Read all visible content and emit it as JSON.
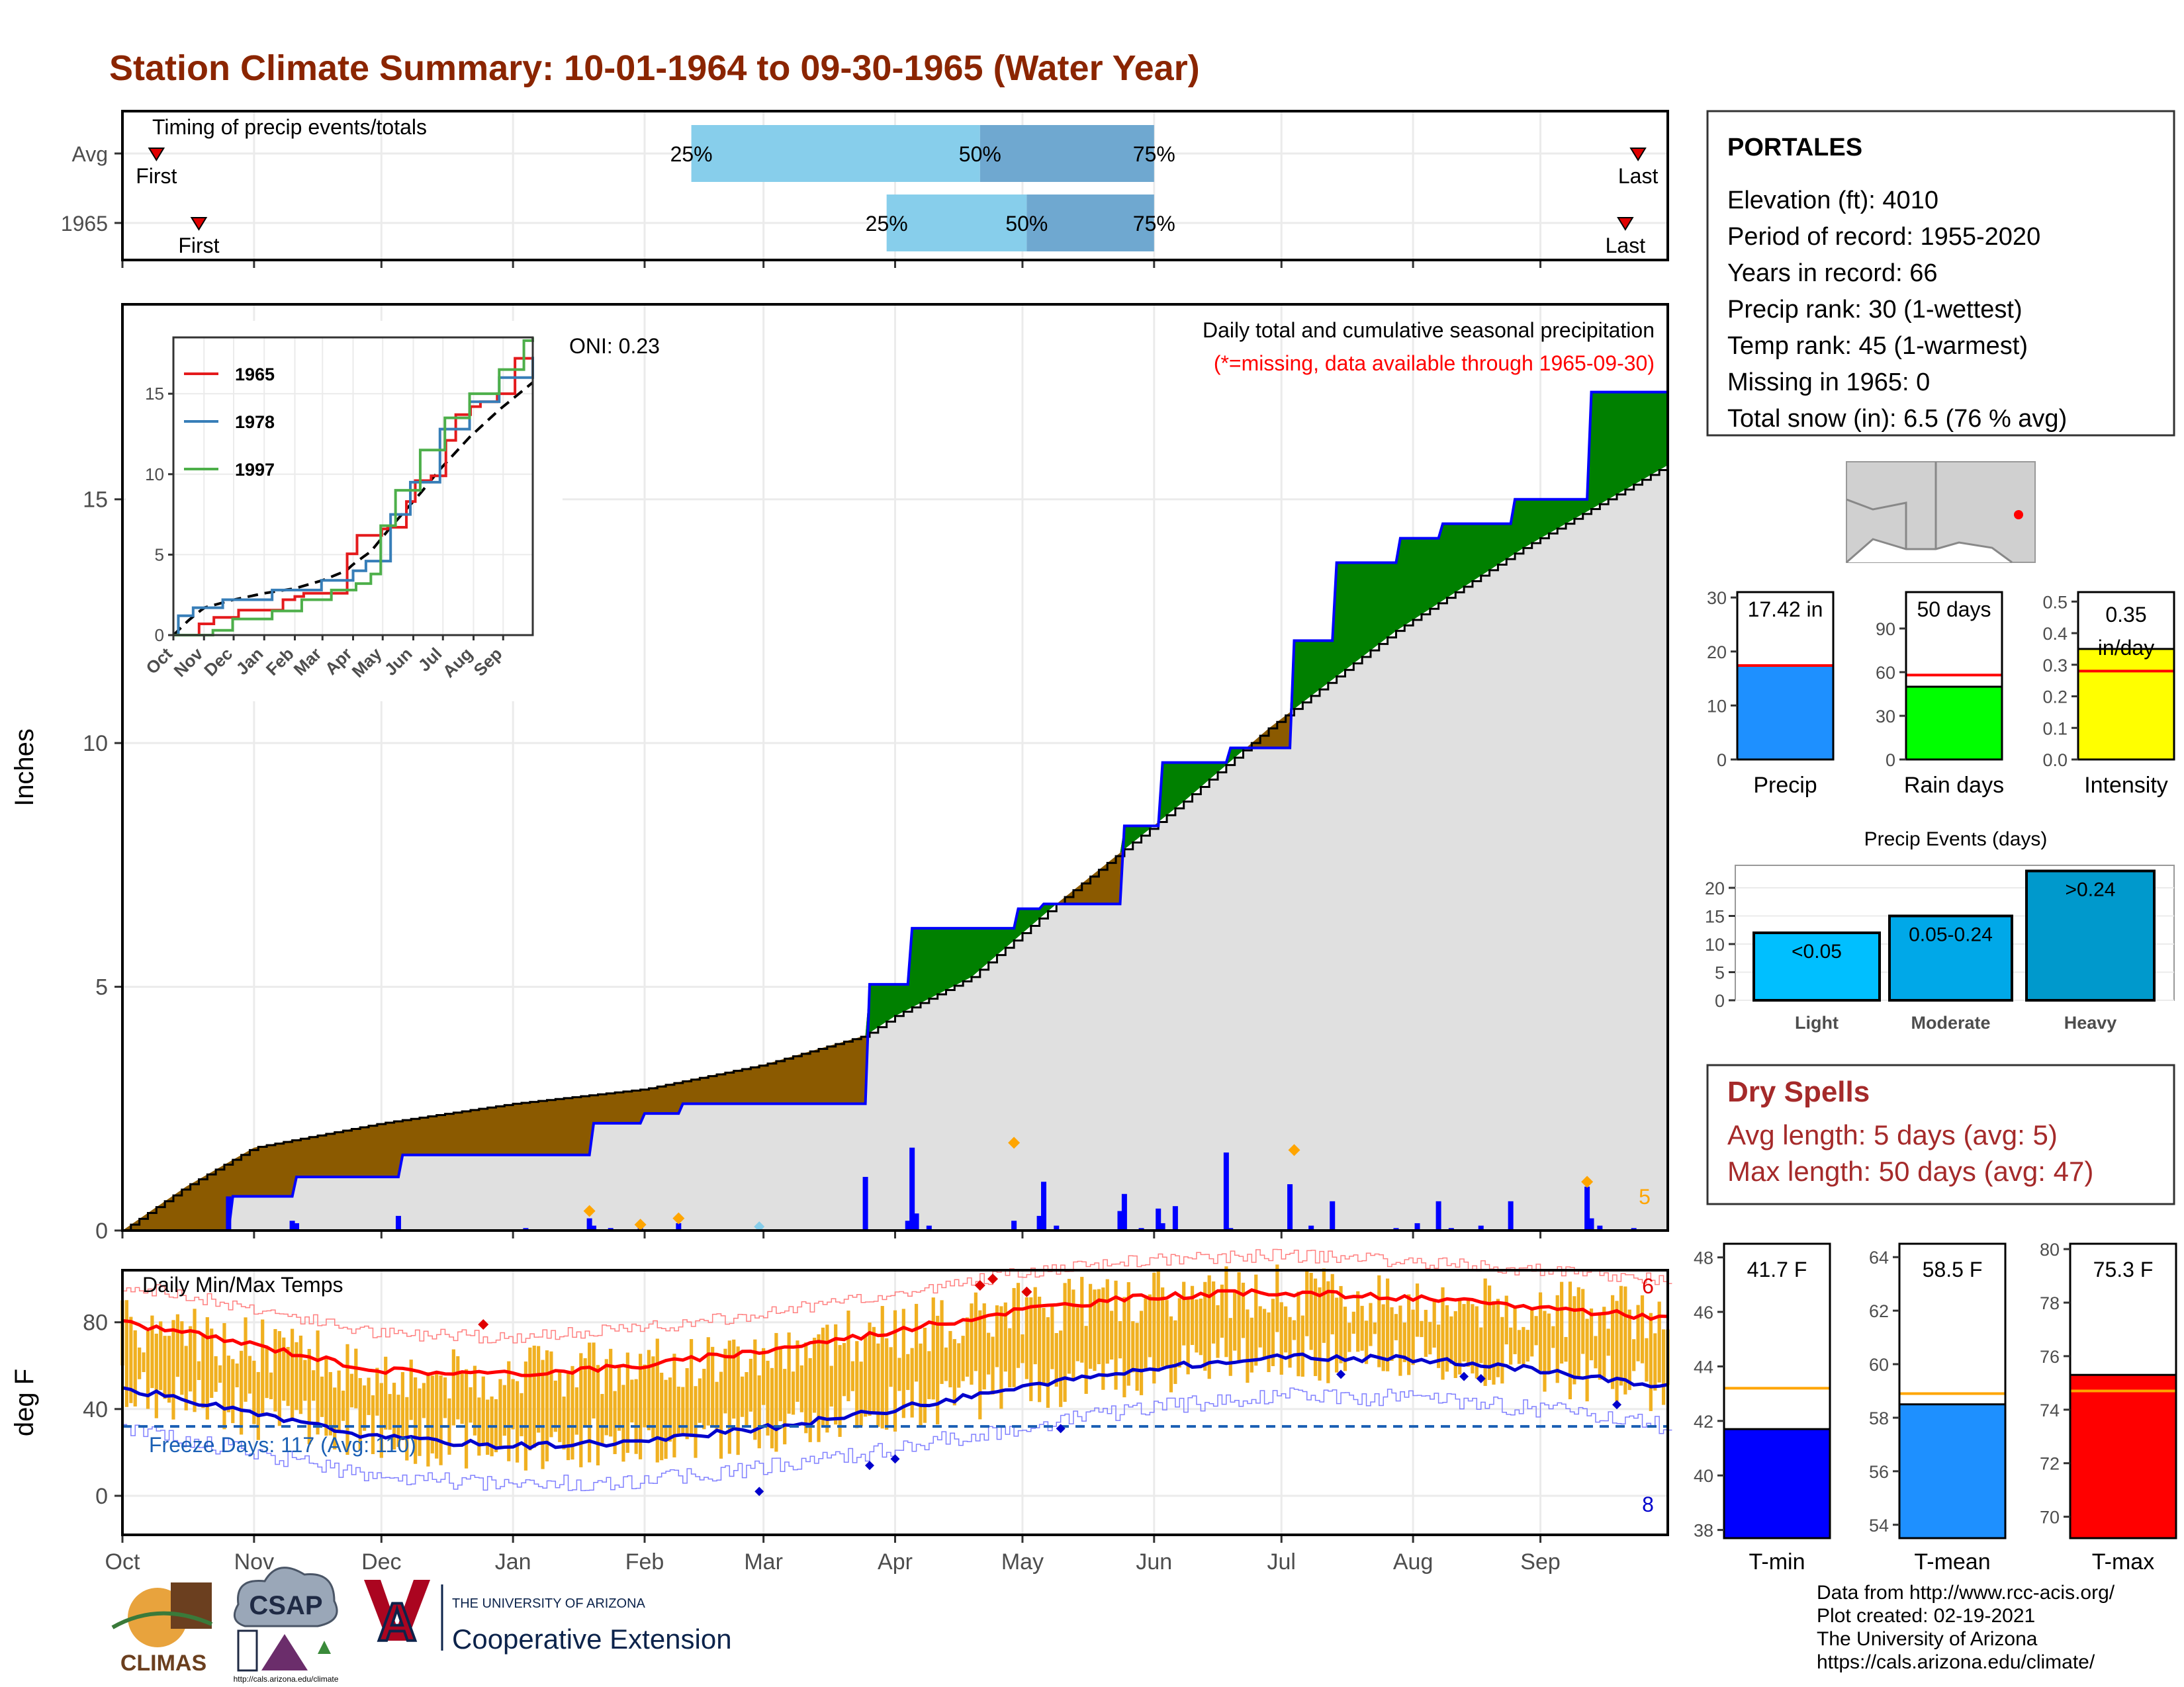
{
  "title": "Station Climate Summary: 10-01-1964 to 09-30-1965 (Water Year)",
  "colors": {
    "title": "#8B2500",
    "brown": "#8B5A00",
    "green": "#008000",
    "blue": "#0000FF",
    "light_grey": "#E0E0E0",
    "sky": "#87CEEB",
    "steel": "#6FA8D0",
    "temp_bar": "#F0B020",
    "red": "#FF0000",
    "freeze": "#1A5FB4"
  },
  "months": [
    "Oct",
    "Nov",
    "Dec",
    "Jan",
    "Feb",
    "Mar",
    "Apr",
    "May",
    "Jun",
    "Jul",
    "Aug",
    "Sep"
  ],
  "timing": {
    "label": "Timing of precip events/totals",
    "rows": [
      {
        "name": "Avg",
        "first_label": "First",
        "last_label": "Last",
        "first_day": 8,
        "last_day": 357,
        "p25": 134,
        "p50": 202,
        "p75": 243,
        "p25_label": "25%",
        "p50_label": "50%",
        "p75_label": "75%"
      },
      {
        "name": "1965",
        "first_label": "First",
        "last_label": "Last",
        "first_day": 18,
        "last_day": 354,
        "p25": 180,
        "p50": 213,
        "p75": 243,
        "p25_label": "25%",
        "p50_label": "50%",
        "p75_label": "75%"
      }
    ]
  },
  "precip_panel": {
    "ylabel": "Inches",
    "yticks": [
      0,
      5,
      10,
      15
    ],
    "ylim": [
      0,
      19
    ],
    "oni_label": "ONI: 0.23",
    "header": "Daily total and cumulative seasonal precipitation",
    "subheader": "(*=missing, data available through 1965-09-30)",
    "count_label": "5",
    "avg_cumulative": {
      "x": [
        0,
        15,
        31,
        61,
        92,
        123,
        151,
        175,
        182,
        200,
        220,
        250,
        270,
        300,
        330,
        364
      ],
      "y": [
        0,
        0.9,
        1.7,
        2.2,
        2.6,
        2.9,
        3.4,
        4.0,
        4.4,
        5.2,
        6.7,
        8.8,
        10.3,
        12.3,
        14.0,
        15.7
      ]
    },
    "cumulative_1965": {
      "x": [
        0,
        25,
        26,
        40,
        41,
        65,
        66,
        110,
        111,
        122,
        123,
        131,
        132,
        175,
        176,
        185,
        186,
        210,
        211,
        216,
        217,
        235,
        236,
        244,
        245,
        260,
        261,
        275,
        276,
        285,
        286,
        300,
        301,
        310,
        311,
        320,
        321,
        327,
        328,
        345,
        346,
        356,
        357,
        364
      ],
      "y": [
        0,
        0,
        0.7,
        0.7,
        1.1,
        1.1,
        1.55,
        1.55,
        2.2,
        2.2,
        2.4,
        2.4,
        2.6,
        2.6,
        5.05,
        5.05,
        6.2,
        6.2,
        6.6,
        6.6,
        6.7,
        6.7,
        8.3,
        8.3,
        9.6,
        9.6,
        9.9,
        9.9,
        12.1,
        12.1,
        13.7,
        13.7,
        14.2,
        14.2,
        14.5,
        14.5,
        14.5,
        14.5,
        15.0,
        15.0,
        17.2,
        17.2,
        17.2,
        17.2
      ]
    },
    "daily_bars": {
      "x": [
        25,
        40,
        41,
        65,
        95,
        110,
        111,
        115,
        122,
        131,
        175,
        185,
        186,
        187,
        190,
        210,
        216,
        217,
        220,
        235,
        236,
        240,
        244,
        245,
        248,
        260,
        261,
        275,
        280,
        285,
        300,
        305,
        310,
        313,
        320,
        327,
        345,
        346,
        348,
        356
      ],
      "y": [
        0.7,
        0.2,
        0.15,
        0.3,
        0.05,
        0.25,
        0.1,
        0.05,
        0.05,
        0.15,
        1.1,
        0.2,
        1.7,
        0.35,
        0.1,
        0.2,
        0.3,
        1.0,
        0.1,
        0.4,
        0.75,
        0.05,
        0.45,
        0.15,
        0.5,
        1.6,
        0.05,
        0.95,
        0.1,
        0.6,
        0.05,
        0.15,
        0.6,
        0.05,
        0.1,
        0.6,
        0.9,
        0.25,
        0.1,
        0.05
      ]
    },
    "extreme_markers": {
      "x": [
        110,
        122,
        131,
        210,
        276,
        345
      ],
      "y": [
        0.4,
        0.12,
        0.25,
        1.8,
        1.65,
        1.0
      ]
    }
  },
  "inset": {
    "legend": [
      "1965",
      "1978",
      "1997"
    ],
    "legend_colors": [
      "#E41A1C",
      "#377EB8",
      "#4DAF4A"
    ],
    "yticks": [
      0,
      5,
      10,
      15
    ],
    "ylim": [
      0,
      18.5
    ],
    "x_labels": [
      "Oct",
      "Nov",
      "Dec",
      "Jan",
      "Feb",
      "Mar",
      "Apr",
      "May",
      "Jun",
      "Jul",
      "Aug",
      "Sep"
    ]
  },
  "temp_panel": {
    "ylabel": "deg F",
    "label": "Daily Min/Max Temps",
    "yticks": [
      0,
      40,
      80
    ],
    "ylim": [
      -18,
      104
    ],
    "freeze_label": "Freeze Days: 117 (Avg: 110)",
    "freeze_line": 32,
    "high_count_label": "6",
    "low_count_label": "8",
    "avg_max": {
      "x": [
        0,
        30,
        60,
        91,
        122,
        151,
        182,
        212,
        243,
        273,
        304,
        334,
        364
      ],
      "y": [
        80,
        70,
        58,
        56,
        60,
        67,
        76,
        86,
        92,
        94,
        91,
        87,
        82
      ]
    },
    "avg_min": {
      "x": [
        0,
        30,
        60,
        91,
        122,
        151,
        182,
        212,
        243,
        273,
        304,
        334,
        364
      ],
      "y": [
        50,
        38,
        27,
        23,
        25,
        31,
        40,
        50,
        59,
        64,
        63,
        58,
        50
      ]
    }
  },
  "station": {
    "name": "PORTALES",
    "lines": [
      "Elevation (ft): 4010",
      "Period of record: 1955-2020",
      "Years in record: 66",
      "Precip rank: 30 (1-wettest)",
      "Temp rank: 45 (1-warmest)",
      "Missing in 1965: 0",
      "Total snow (in): 6.5 (76 % avg)"
    ]
  },
  "summary_bars": [
    {
      "label": "Precip",
      "value": 17.42,
      "value_label": "17.42 in",
      "avg": 17.4,
      "yticks": [
        0,
        10,
        20,
        30
      ],
      "ymax": 31,
      "color": "#1E90FF"
    },
    {
      "label": "Rain days",
      "value": 50,
      "value_label": "50 days",
      "avg": 58,
      "yticks": [
        0,
        30,
        60,
        90
      ],
      "ymax": 115,
      "color": "#00FF00"
    },
    {
      "label": "Intensity",
      "value": 0.35,
      "value_label": "0.35 in/day",
      "avg": 0.28,
      "yticks": [
        0.0,
        0.1,
        0.2,
        0.3,
        0.4,
        0.5
      ],
      "ymax": 0.53,
      "color": "#FFFF00"
    }
  ],
  "events": {
    "title": "Precip Events (days)",
    "categories": [
      "Light",
      "Moderate",
      "Heavy"
    ],
    "values": [
      12,
      15,
      23
    ],
    "value_labels": [
      "<0.05",
      "0.05-0.24",
      ">0.24"
    ],
    "yticks": [
      0,
      5,
      10,
      15,
      20
    ],
    "ymax": 24
  },
  "dry_spells": {
    "title": "Dry Spells",
    "avg_line": "Avg length: 5 days (avg: 5)",
    "max_line": "Max length: 50 days (avg: 47)"
  },
  "temp_bars": [
    {
      "label": "T-min",
      "value": 41.7,
      "value_label": "41.7 F",
      "avg": 43.2,
      "yticks": [
        38,
        40,
        42,
        44,
        46,
        48
      ],
      "ymin": 37.7,
      "ymax": 48.5,
      "color": "#0000FF"
    },
    {
      "label": "T-mean",
      "value": 58.5,
      "value_label": "58.5 F",
      "avg": 58.9,
      "yticks": [
        54,
        56,
        58,
        60,
        62,
        64
      ],
      "ymin": 53.5,
      "ymax": 64.5,
      "color": "#1E90FF"
    },
    {
      "label": "T-max",
      "value": 75.3,
      "value_label": "75.3 F",
      "avg": 74.7,
      "yticks": [
        70,
        72,
        74,
        76,
        78,
        80
      ],
      "ymin": 69.2,
      "ymax": 80.2,
      "color": "#FF0000"
    }
  ],
  "footer": {
    "lines": [
      "Data from http://www.rcc-acis.org/",
      "Plot created: 02-19-2021",
      "The University of Arizona",
      "https://cals.arizona.edu/climate/"
    ],
    "climas": "CLIMAS",
    "csap": "CSAP",
    "csap_url": "http://cals.arizona.edu/climate",
    "ua_small": "THE UNIVERSITY OF ARIZONA",
    "ua_big": "Cooperative Extension"
  }
}
